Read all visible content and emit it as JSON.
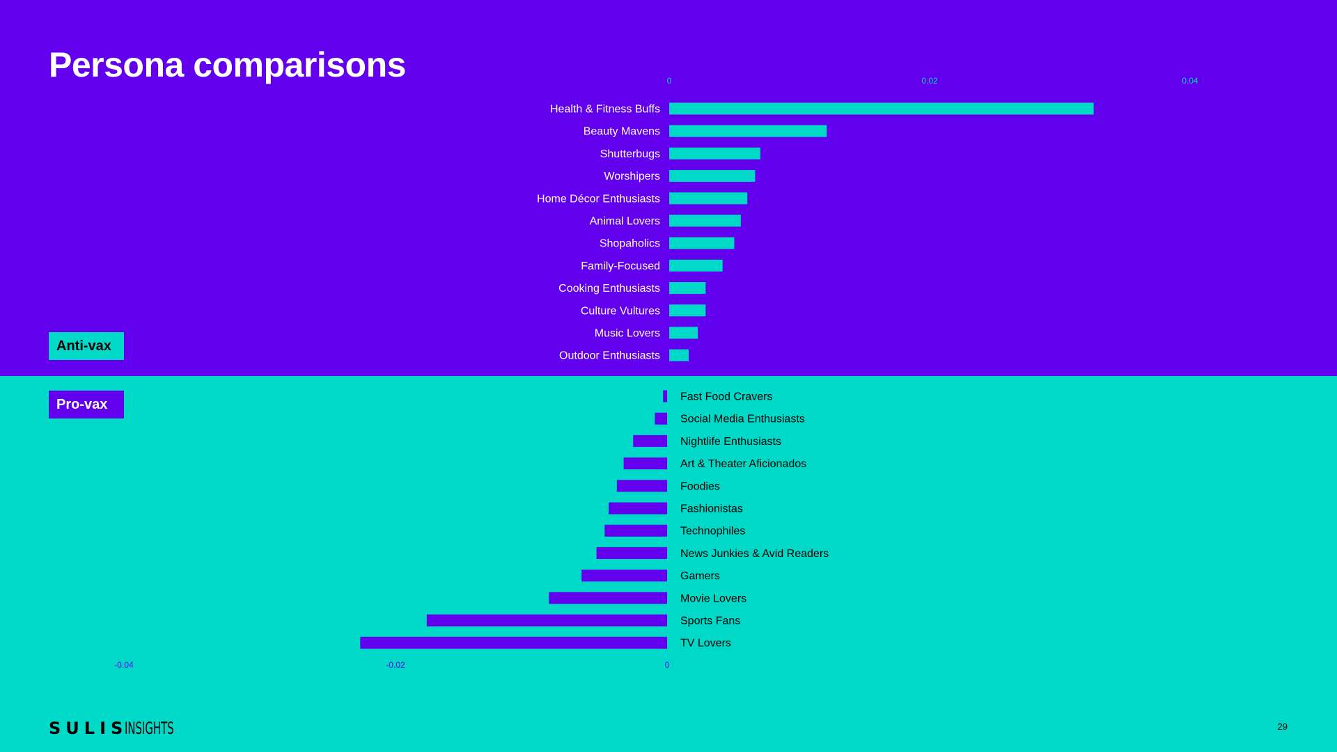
{
  "colors": {
    "purple": "#6200EE",
    "teal": "#00D9C7",
    "white": "#FFFFFF",
    "black": "#000000"
  },
  "page": {
    "title": "Persona comparisons",
    "number": "29"
  },
  "logo": {
    "brand": "SULIS",
    "sub": "INSIGHTS"
  },
  "groups": {
    "anti": "Anti-vax",
    "pro": "Pro-vax"
  },
  "chart_data": [
    {
      "type": "bar",
      "orientation": "horizontal",
      "categories": [
        "Health & Fitness Buffs",
        "Beauty Mavens",
        "Shutterbugs",
        "Worshipers",
        "Home Décor Enthusiasts",
        "Animal Lovers",
        "Shopaholics",
        "Family-Focused",
        "Cooking Enthusiasts",
        "Culture Vultures",
        "Music Lovers",
        "Outdoor Enthusiasts"
      ],
      "values": [
        0.0326,
        0.0121,
        0.007,
        0.0066,
        0.006,
        0.0055,
        0.005,
        0.0041,
        0.0028,
        0.0028,
        0.0022,
        0.0015
      ],
      "xlim": [
        0,
        0.045
      ],
      "ticks": [
        0,
        0.02,
        0.04
      ],
      "tick_labels": [
        "0",
        "0.02",
        "0.04"
      ],
      "axis_position": "top",
      "grid": false,
      "bar_color": "#00D9C7"
    },
    {
      "type": "bar",
      "orientation": "horizontal",
      "categories": [
        "Fast Food Cravers",
        "Social Media Enthusiasts",
        "Nightlife Enthusiasts",
        "Art & Theater Aficionados",
        "Foodies",
        "Fashionistas",
        "Technophiles",
        "News Junkies & Avid Readers",
        "Gamers",
        "Movie Lovers",
        "Sports Fans",
        "TV Lovers"
      ],
      "values": [
        -0.0003,
        -0.0009,
        -0.0025,
        -0.0032,
        -0.0037,
        -0.0043,
        -0.0046,
        -0.0052,
        -0.0063,
        -0.0087,
        -0.0177,
        -0.0226
      ],
      "xlim": [
        -0.04,
        0
      ],
      "ticks": [
        -0.04,
        -0.02,
        0
      ],
      "tick_labels": [
        "-0.04",
        "-0.02",
        "0"
      ],
      "axis_position": "bottom",
      "grid": false,
      "bar_color": "#6200EE"
    }
  ]
}
